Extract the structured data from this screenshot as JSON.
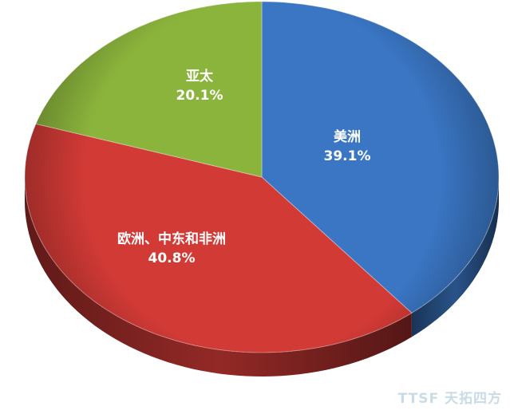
{
  "chart_data": {
    "type": "pie",
    "style": "3d",
    "start": "top",
    "direction": "clockwise",
    "slices": [
      {
        "label": "美洲",
        "value": 39.1,
        "value_label": "39.1%",
        "color": "#3a76c4"
      },
      {
        "label": "欧洲、中东和非洲",
        "value": 40.8,
        "value_label": "40.8%",
        "color": "#d23a36"
      },
      {
        "label": "亚太",
        "value": 20.1,
        "value_label": "20.1%",
        "color": "#8bb43c"
      }
    ]
  },
  "watermark": "TTSF 天拓四方"
}
